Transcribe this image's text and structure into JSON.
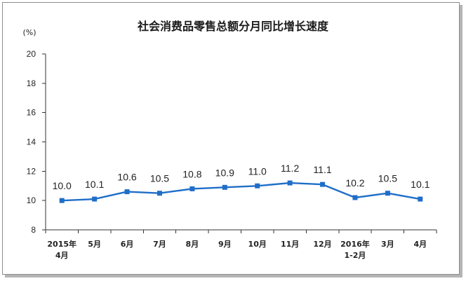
{
  "chart_data": {
    "type": "line",
    "title": "社会消费品零售总额分月同比增长速度",
    "ylabel": "(%)",
    "xlabel": "",
    "categories": [
      "2015年\n4月",
      "5月",
      "6月",
      "7月",
      "8月",
      "9月",
      "10月",
      "11月",
      "12月",
      "2016年\n1-2月",
      "3月",
      "4月"
    ],
    "series": [
      {
        "values": [
          10.0,
          10.1,
          10.6,
          10.5,
          10.8,
          10.9,
          11.0,
          11.2,
          11.1,
          10.2,
          10.5,
          10.1
        ]
      }
    ],
    "ylim": [
      8,
      20
    ],
    "yticks": [
      8,
      10,
      12,
      14,
      16,
      18,
      20
    ],
    "show_data_labels": true,
    "marker": "square",
    "grid": false,
    "legend": "none",
    "line_color": "#1f6ec8"
  }
}
